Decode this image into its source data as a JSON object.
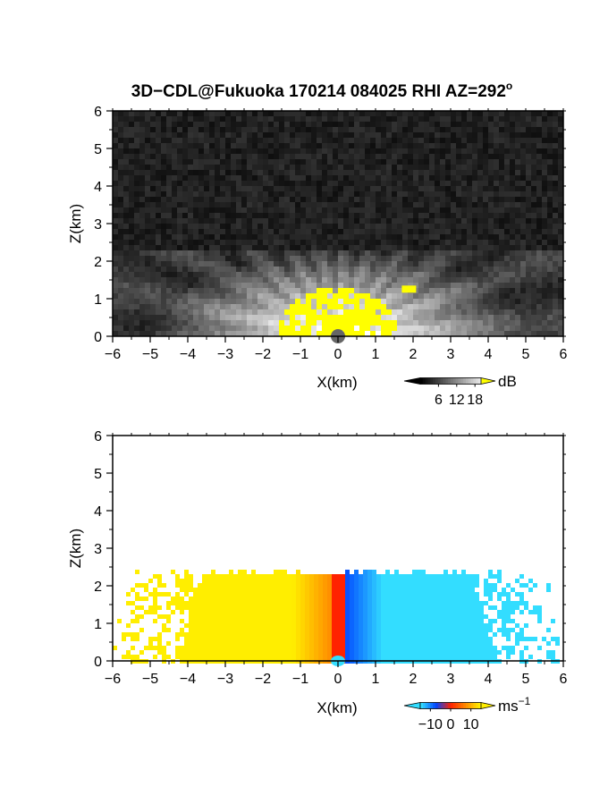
{
  "chart_data": [
    {
      "type": "heatmap",
      "title": "3D−CDL@Fukuoka 170214 084025 RHI AZ=292",
      "title_superscript": "o",
      "xlabel": "X(km)",
      "ylabel": "Z(km)",
      "xlim": [
        -6,
        6
      ],
      "ylim": [
        0,
        6
      ],
      "xticks": [
        "−6",
        "−5",
        "−4",
        "−3",
        "−2",
        "−1",
        "0",
        "1",
        "2",
        "3",
        "4",
        "5",
        "6"
      ],
      "yticks": [
        "0",
        "1",
        "2",
        "3",
        "4",
        "5",
        "6"
      ],
      "colorbar": {
        "unit": "dB",
        "ticks": [
          "6",
          "12",
          "18"
        ],
        "range": [
          0,
          20
        ],
        "colormap": "grayscale, yellow above max"
      },
      "colors": {
        "low": "#000000",
        "high": "#ffffff",
        "over": "#ffff00"
      },
      "echo_top_km": 2.3,
      "saturated_top_km": 1.3
    },
    {
      "type": "heatmap",
      "xlabel": "X(km)",
      "ylabel": "Z(km)",
      "xlim": [
        -6,
        6
      ],
      "ylim": [
        0,
        6
      ],
      "xticks": [
        "−6",
        "−5",
        "−4",
        "−3",
        "−2",
        "−1",
        "0",
        "1",
        "2",
        "3",
        "4",
        "5",
        "6"
      ],
      "yticks": [
        "0",
        "1",
        "2",
        "3",
        "4",
        "5",
        "6"
      ],
      "colorbar": {
        "unit": "ms",
        "unit_superscript": "−1",
        "ticks": [
          "−10",
          "0",
          "10"
        ],
        "range": [
          -15,
          15
        ],
        "colormap": "cyan-blue-red-orange-yellow"
      },
      "colors": {
        "neg_far": "#33ddff",
        "neg_near": "#0044ff",
        "zero": "#ff2200",
        "pos_near": "#ff8800",
        "pos_far": "#ffee00"
      },
      "echo_top_km": 2.3,
      "velocity_left_ms": 12,
      "velocity_right_ms": -12
    }
  ]
}
